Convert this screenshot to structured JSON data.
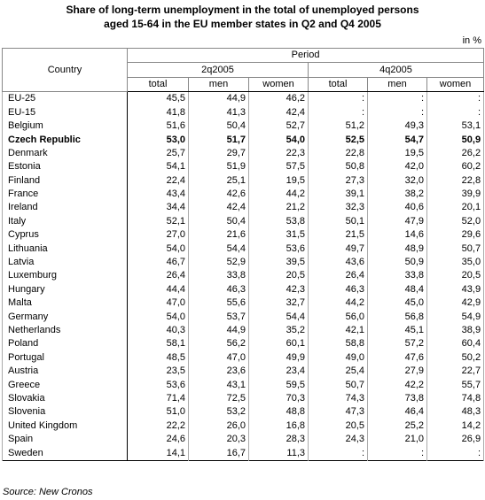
{
  "header": {
    "title_line1": "Share of long-term unemployment in the total of unemployed persons",
    "title_line2": "aged 15-64 in the EU member states in Q2 and Q4 2005",
    "unit": "in %"
  },
  "table": {
    "country_header": "Country",
    "period_header": "Period",
    "periods": [
      "2q2005",
      "4q2005"
    ],
    "subheaders": [
      "total",
      "men",
      "women",
      "total",
      "men",
      "women"
    ],
    "rows": [
      {
        "cells": [
          "EU-25",
          "45,5",
          "44,9",
          "46,2",
          ":",
          ":",
          ":"
        ]
      },
      {
        "cells": [
          "EU-15",
          "41,8",
          "41,3",
          "42,4",
          ":",
          ":",
          ":"
        ]
      },
      {
        "cells": [
          "Belgium",
          "51,6",
          "50,4",
          "52,7",
          "51,2",
          "49,3",
          "53,1"
        ]
      },
      {
        "cells": [
          "Czech Republic",
          "53,0",
          "51,7",
          "54,0",
          "52,5",
          "54,7",
          "50,9"
        ],
        "bold": true
      },
      {
        "cells": [
          "Denmark",
          "25,7",
          "29,7",
          "22,3",
          "22,8",
          "19,5",
          "26,2"
        ]
      },
      {
        "cells": [
          "Estonia",
          "54,1",
          "51,9",
          "57,5",
          "50,8",
          "42,0",
          "60,2"
        ]
      },
      {
        "cells": [
          "Finland",
          "22,4",
          "25,1",
          "19,5",
          "27,3",
          "32,0",
          "22,8"
        ]
      },
      {
        "cells": [
          "France",
          "43,4",
          "42,6",
          "44,2",
          "39,1",
          "38,2",
          "39,9"
        ]
      },
      {
        "cells": [
          "Ireland",
          "34,4",
          "42,4",
          "21,2",
          "32,3",
          "40,6",
          "20,1"
        ]
      },
      {
        "cells": [
          "Italy",
          "52,1",
          "50,4",
          "53,8",
          "50,1",
          "47,9",
          "52,0"
        ]
      },
      {
        "cells": [
          "Cyprus",
          "27,0",
          "21,6",
          "31,5",
          "21,5",
          "14,6",
          "29,6"
        ]
      },
      {
        "cells": [
          "Lithuania",
          "54,0",
          "54,4",
          "53,6",
          "49,7",
          "48,9",
          "50,7"
        ]
      },
      {
        "cells": [
          "Latvia",
          "46,7",
          "52,9",
          "39,5",
          "43,6",
          "50,9",
          "35,0"
        ]
      },
      {
        "cells": [
          "Luxemburg",
          "26,4",
          "33,8",
          "20,5",
          "26,4",
          "33,8",
          "20,5"
        ]
      },
      {
        "cells": [
          "Hungary",
          "44,4",
          "46,3",
          "42,3",
          "46,3",
          "48,4",
          "43,9"
        ]
      },
      {
        "cells": [
          "Malta",
          "47,0",
          "55,6",
          "32,7",
          "44,2",
          "45,0",
          "42,9"
        ]
      },
      {
        "cells": [
          "Germany",
          "54,0",
          "53,7",
          "54,4",
          "56,0",
          "56,8",
          "54,9"
        ]
      },
      {
        "cells": [
          "Netherlands",
          "40,3",
          "44,9",
          "35,2",
          "42,1",
          "45,1",
          "38,9"
        ]
      },
      {
        "cells": [
          "Poland",
          "58,1",
          "56,2",
          "60,1",
          "58,8",
          "57,2",
          "60,4"
        ]
      },
      {
        "cells": [
          "Portugal",
          "48,5",
          "47,0",
          "49,9",
          "49,0",
          "47,6",
          "50,2"
        ]
      },
      {
        "cells": [
          "Austria",
          "23,5",
          "23,6",
          "23,4",
          "25,4",
          "27,9",
          "22,7"
        ]
      },
      {
        "cells": [
          "Greece",
          "53,6",
          "43,1",
          "59,5",
          "50,7",
          "42,2",
          "55,7"
        ]
      },
      {
        "cells": [
          "Slovakia",
          "71,4",
          "72,5",
          "70,3",
          "74,3",
          "73,8",
          "74,8"
        ]
      },
      {
        "cells": [
          "Slovenia",
          "51,0",
          "53,2",
          "48,8",
          "47,3",
          "46,4",
          "48,3"
        ]
      },
      {
        "cells": [
          "United Kingdom",
          "22,2",
          "26,0",
          "16,8",
          "20,5",
          "25,2",
          "14,2"
        ]
      },
      {
        "cells": [
          "Spain",
          "24,6",
          "20,3",
          "28,3",
          "24,3",
          "21,0",
          "26,9"
        ]
      },
      {
        "cells": [
          "Sweden",
          "14,1",
          "16,7",
          "11,3",
          ":",
          ":",
          ":"
        ]
      }
    ]
  },
  "footer": {
    "source": "Source: New Cronos"
  }
}
